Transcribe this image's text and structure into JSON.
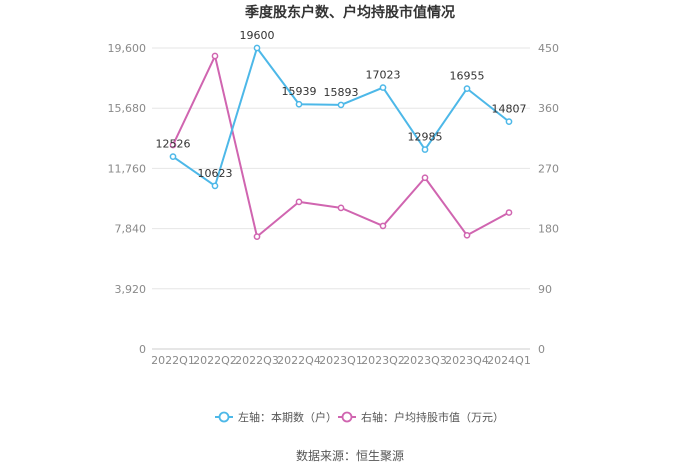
{
  "chart_data": {
    "type": "line",
    "title": "季度股东户数、户均持股市值情况",
    "categories": [
      "2022Q1",
      "2022Q2",
      "2022Q3",
      "2022Q4",
      "2023Q1",
      "2023Q2",
      "2023Q3",
      "2023Q4",
      "2024Q1"
    ],
    "y_left": {
      "range": [
        0,
        19600
      ],
      "ticks": [
        "0",
        "3,920",
        "7,840",
        "11,760",
        "15,680",
        "19,600"
      ]
    },
    "y_right": {
      "range": [
        0,
        450
      ],
      "ticks": [
        "0",
        "90",
        "180",
        "270",
        "360",
        "450"
      ]
    },
    "series": [
      {
        "name": "左轴：本期数（户）",
        "axis": "left",
        "color": "#4db8e8",
        "values": [
          12526,
          10623,
          19600,
          15939,
          15893,
          17023,
          12985,
          16955,
          14807
        ],
        "labels": [
          "12526",
          "10623",
          "19600",
          "15939",
          "15893",
          "17023",
          "12985",
          "16955",
          "14807"
        ]
      },
      {
        "name": "右轴：户均持股市值（万元）",
        "axis": "right",
        "color": "#d065b0",
        "values": [
          305,
          438,
          168,
          220,
          211,
          184,
          256,
          170,
          204
        ]
      }
    ],
    "legend_position": "bottom",
    "grid": "horizontal"
  },
  "footer": {
    "source": "数据来源：恒生聚源"
  }
}
